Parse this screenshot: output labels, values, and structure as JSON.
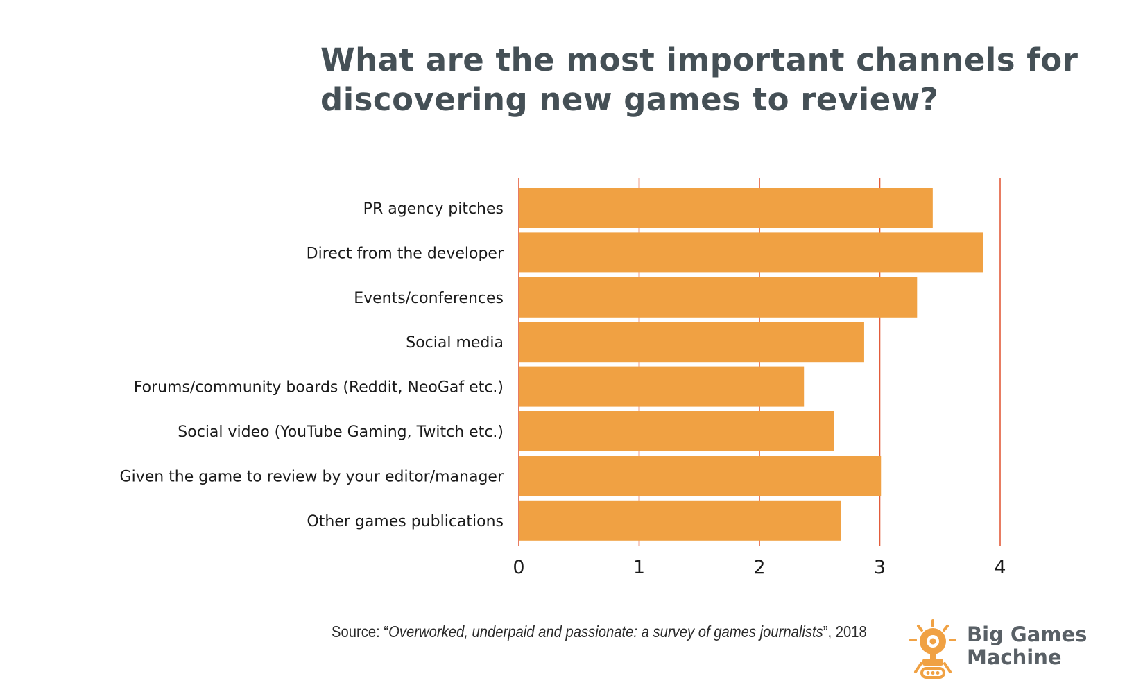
{
  "title": {
    "line1": "What are the most important channels for",
    "line2": "discovering new games to review?"
  },
  "chart_data": {
    "type": "bar",
    "orientation": "horizontal",
    "title": "What are the most important channels for discovering new games to review?",
    "categories": [
      "PR agency pitches",
      "Direct from the developer",
      "Events/conferences",
      "Social media",
      "Forums/community boards (Reddit, NeoGaf etc.)",
      "Social video (YouTube Gaming, Twitch etc.)",
      "Given the game to review by your editor/manager",
      "Other games publications"
    ],
    "values": [
      3.44,
      3.86,
      3.31,
      2.87,
      2.37,
      2.62,
      3.01,
      2.68
    ],
    "xlim": [
      0,
      4
    ],
    "xticks": [
      0,
      1,
      2,
      3,
      4
    ],
    "xlabel": "",
    "ylabel": "",
    "grid": true,
    "colors": {
      "bar": "#F0A143",
      "grid": "#E35C3B"
    }
  },
  "source": {
    "prefix": "Source: “",
    "title": "Overworked, underpaid and passionate: a survey of games journalists",
    "suffix": "”, 2018"
  },
  "logo": {
    "line1": "Big Games",
    "line2": "Machine",
    "icon": "robot-icon",
    "color": "#F0A143"
  }
}
